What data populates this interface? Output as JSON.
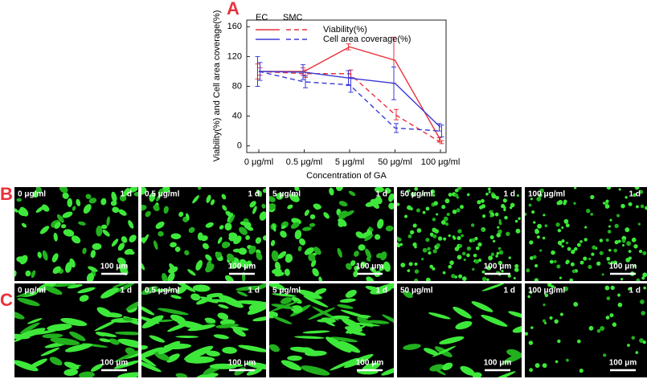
{
  "chart_data": {
    "type": "line",
    "panel_label": "A",
    "x_label": "Concentration of GA",
    "y_label": "Viability(%) and Cell area coverage(%)",
    "categories": [
      "0 μg/ml",
      "0.5 μg/ml",
      "5 μg/ml",
      "50 μg/ml",
      "100 μg/ml"
    ],
    "ylim": [
      -9,
      169
    ],
    "yticks": [
      0,
      40,
      80,
      120,
      160
    ],
    "series": [
      {
        "name": "Viability(%)",
        "group": "EC",
        "color": "#e8323c",
        "dashed": false,
        "values": [
          100,
          100,
          133,
          115,
          8
        ],
        "errors": [
          10,
          5,
          4,
          31,
          3
        ]
      },
      {
        "name": "Viability(%)",
        "group": "SMC",
        "color": "#e8323c",
        "dashed": true,
        "values": [
          100,
          97,
          97,
          42,
          5
        ],
        "errors": [
          5,
          5,
          5,
          7,
          2
        ]
      },
      {
        "name": "Cell area coverage(%)",
        "group": "EC",
        "color": "#3a3ad6",
        "dashed": false,
        "values": [
          100,
          99,
          91,
          84,
          25
        ],
        "errors": [
          20,
          10,
          10,
          22,
          5
        ]
      },
      {
        "name": "Cell area coverage(%)",
        "group": "SMC",
        "color": "#3a3ad6",
        "dashed": true,
        "values": [
          100,
          86,
          82,
          24,
          20
        ],
        "errors": [
          12,
          8,
          10,
          6,
          8
        ]
      }
    ]
  },
  "image_rows": [
    {
      "label": "B",
      "images": [
        {
          "dose": "0 μg/ml",
          "time": "1 d",
          "scale": "100 μm"
        },
        {
          "dose": "0.5 μg/ml",
          "time": "1 d",
          "scale": "100 μm"
        },
        {
          "dose": "5 μg/ml",
          "time": "1 d",
          "scale": "100 μm"
        },
        {
          "dose": "50 μg/ml",
          "time": "1 d",
          "scale": "100 μm"
        },
        {
          "dose": "100 μg/ml",
          "time": "1 d",
          "scale": "100 μm"
        }
      ]
    },
    {
      "label": "C",
      "images": [
        {
          "dose": "0 μg/ml",
          "time": "1 d",
          "scale": "100 μm"
        },
        {
          "dose": "0.5 μg/ml",
          "time": "1 d",
          "scale": "100 μm"
        },
        {
          "dose": "5 μg/ml",
          "time": "1 d",
          "scale": "100 μm"
        },
        {
          "dose": "50 μg/ml",
          "time": "1 d",
          "scale": "100 μm"
        },
        {
          "dose": "100 μg/ml",
          "time": "1 d",
          "scale": "100 μm"
        }
      ]
    }
  ]
}
